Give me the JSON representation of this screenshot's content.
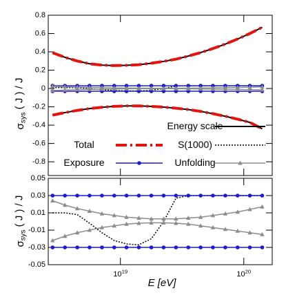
{
  "chart_data": [
    {
      "type": "line",
      "ylabel": "σ_{sys} ( J ) / J",
      "xscale": "log",
      "legend": "lower left",
      "xticklabels": false,
      "x": [
        2.82e+18,
        3.55e+18,
        4.47e+18,
        5.62e+18,
        7.08e+18,
        8.91e+18,
        1.12e+19,
        1.41e+19,
        1.78e+19,
        2.24e+19,
        2.82e+19,
        3.55e+19,
        4.47e+19,
        5.62e+19,
        7.08e+19,
        8.91e+19,
        1.12e+20,
        1.41e+20
      ],
      "xlim": [
        2.6e+18,
        1.7e+20
      ],
      "xticks": [
        1e+19,
        1e+20
      ],
      "ylim": [
        -0.95,
        0.8
      ],
      "yticks": [
        -0.8,
        -0.6,
        -0.4,
        -0.2,
        0,
        0.2,
        0.4,
        0.6,
        0.8
      ],
      "series": [
        {
          "name": "Energy scale",
          "color": "#000000",
          "line": "solid",
          "width": 2,
          "values": [
            0.39,
            0.34,
            0.3,
            0.27,
            0.255,
            0.25,
            0.253,
            0.26,
            0.276,
            0.296,
            0.32,
            0.354,
            0.392,
            0.436,
            0.485,
            0.54,
            0.6,
            0.668
          ]
        },
        {
          "name": "Energy scale",
          "color": "#000000",
          "line": "solid",
          "width": 2,
          "values": [
            -0.291,
            -0.263,
            -0.239,
            -0.219,
            -0.205,
            -0.195,
            -0.19,
            -0.19,
            -0.195,
            -0.203,
            -0.215,
            -0.23,
            -0.25,
            -0.275,
            -0.303,
            -0.335,
            -0.37,
            -0.44
          ]
        },
        {
          "name": "Total",
          "color": "#e8120c",
          "line": "dashdot",
          "width": 4,
          "values": [
            0.39,
            0.34,
            0.3,
            0.27,
            0.255,
            0.25,
            0.253,
            0.26,
            0.276,
            0.296,
            0.32,
            0.354,
            0.392,
            0.436,
            0.485,
            0.54,
            0.6,
            0.668
          ]
        },
        {
          "name": "Total",
          "color": "#e8120c",
          "line": "dashdot",
          "width": 4,
          "values": [
            -0.291,
            -0.263,
            -0.239,
            -0.219,
            -0.205,
            -0.195,
            -0.19,
            -0.19,
            -0.195,
            -0.203,
            -0.215,
            -0.23,
            -0.25,
            -0.275,
            -0.303,
            -0.335,
            -0.37,
            -0.44
          ]
        },
        {
          "name": "S(1000)",
          "color": "#000000",
          "line": "dotted",
          "width": 1.5,
          "values": [
            0.01,
            0.01,
            0.008,
            -0.002,
            -0.013,
            -0.022,
            -0.026,
            -0.027,
            -0.02,
            0.0,
            0.027,
            0.03,
            0.03,
            0.03,
            0.03,
            0.03,
            0.03,
            0.03
          ]
        },
        {
          "name": "Exposure",
          "color": "#1a1ad8",
          "line": "solid",
          "width": 1.5,
          "marker": "circle",
          "values": [
            0.03,
            0.03,
            0.03,
            0.03,
            0.03,
            0.03,
            0.03,
            0.03,
            0.03,
            0.03,
            0.03,
            0.03,
            0.03,
            0.03,
            0.03,
            0.03,
            0.03,
            0.03
          ]
        },
        {
          "name": "Exposure",
          "color": "#1a1ad8",
          "line": "solid",
          "width": 1.5,
          "marker": "circle",
          "values": [
            -0.03,
            -0.03,
            -0.03,
            -0.03,
            -0.03,
            -0.03,
            -0.03,
            -0.03,
            -0.03,
            -0.03,
            -0.03,
            -0.03,
            -0.03,
            -0.03,
            -0.03,
            -0.03,
            -0.03,
            -0.03
          ]
        },
        {
          "name": "Unfolding",
          "color": "#8c8c8c",
          "line": "solid",
          "width": 1.5,
          "marker": "triangle",
          "values": [
            0.024,
            0.019,
            0.015,
            0.012,
            0.009,
            0.007,
            0.005,
            0.004,
            0.003,
            0.003,
            0.003,
            0.004,
            0.005,
            0.007,
            0.009,
            0.011,
            0.014,
            0.017
          ]
        },
        {
          "name": "Unfolding",
          "color": "#8c8c8c",
          "line": "solid",
          "width": 1.5,
          "marker": "triangle",
          "values": [
            -0.022,
            -0.017,
            -0.013,
            -0.01,
            -0.007,
            -0.005,
            -0.003,
            -0.002,
            -0.0015,
            -0.0015,
            -0.002,
            -0.003,
            -0.005,
            -0.007,
            -0.009,
            -0.011,
            -0.013,
            -0.015
          ]
        }
      ]
    },
    {
      "type": "line",
      "ylabel": "σ_{sys} ( J ) / J",
      "xlabel": "E [eV]",
      "xscale": "log",
      "xticklabels": true,
      "x": [
        2.82e+18,
        3.55e+18,
        4.47e+18,
        5.62e+18,
        7.08e+18,
        8.91e+18,
        1.12e+19,
        1.41e+19,
        1.78e+19,
        2.24e+19,
        2.82e+19,
        3.55e+19,
        4.47e+19,
        5.62e+19,
        7.08e+19,
        8.91e+19,
        1.12e+20,
        1.41e+20
      ],
      "xlim": [
        2.6e+18,
        1.7e+20
      ],
      "xticks": [
        {
          "value": 1e+19,
          "label": "10^{19}"
        },
        {
          "value": 1e+20,
          "label": "10^{20}"
        }
      ],
      "ylim": [
        -0.05,
        0.05
      ],
      "yticks": [
        -0.05,
        -0.03,
        -0.01,
        0.01,
        0.03,
        0.05
      ],
      "series": [
        {
          "name": "S(1000)",
          "color": "#000000",
          "line": "dotted",
          "width": 1.5,
          "values": [
            0.01,
            0.01,
            0.008,
            -0.002,
            -0.013,
            -0.022,
            -0.026,
            -0.027,
            -0.02,
            0.0,
            0.027,
            0.03,
            0.03,
            0.03,
            0.03,
            0.03,
            0.03,
            0.03
          ]
        },
        {
          "name": "Exposure",
          "color": "#1a1ad8",
          "line": "solid",
          "width": 1.5,
          "marker": "circle",
          "values": [
            0.03,
            0.03,
            0.03,
            0.03,
            0.03,
            0.03,
            0.03,
            0.03,
            0.03,
            0.03,
            0.03,
            0.03,
            0.03,
            0.03,
            0.03,
            0.03,
            0.03,
            0.03
          ]
        },
        {
          "name": "Exposure",
          "color": "#1a1ad8",
          "line": "solid",
          "width": 1.5,
          "marker": "circle",
          "values": [
            -0.03,
            -0.03,
            -0.03,
            -0.03,
            -0.03,
            -0.03,
            -0.03,
            -0.03,
            -0.03,
            -0.03,
            -0.03,
            -0.03,
            -0.03,
            -0.03,
            -0.03,
            -0.03,
            -0.03,
            -0.03
          ]
        },
        {
          "name": "Unfolding",
          "color": "#8c8c8c",
          "line": "solid",
          "width": 1.5,
          "marker": "triangle",
          "values": [
            0.024,
            0.019,
            0.015,
            0.012,
            0.009,
            0.007,
            0.005,
            0.004,
            0.003,
            0.003,
            0.003,
            0.004,
            0.005,
            0.007,
            0.009,
            0.011,
            0.014,
            0.017
          ]
        },
        {
          "name": "Unfolding",
          "color": "#8c8c8c",
          "line": "solid",
          "width": 1.5,
          "marker": "triangle",
          "values": [
            -0.022,
            -0.017,
            -0.013,
            -0.01,
            -0.007,
            -0.005,
            -0.003,
            -0.002,
            -0.0015,
            -0.0015,
            -0.002,
            -0.003,
            -0.005,
            -0.007,
            -0.009,
            -0.011,
            -0.013,
            -0.015
          ]
        }
      ]
    }
  ]
}
